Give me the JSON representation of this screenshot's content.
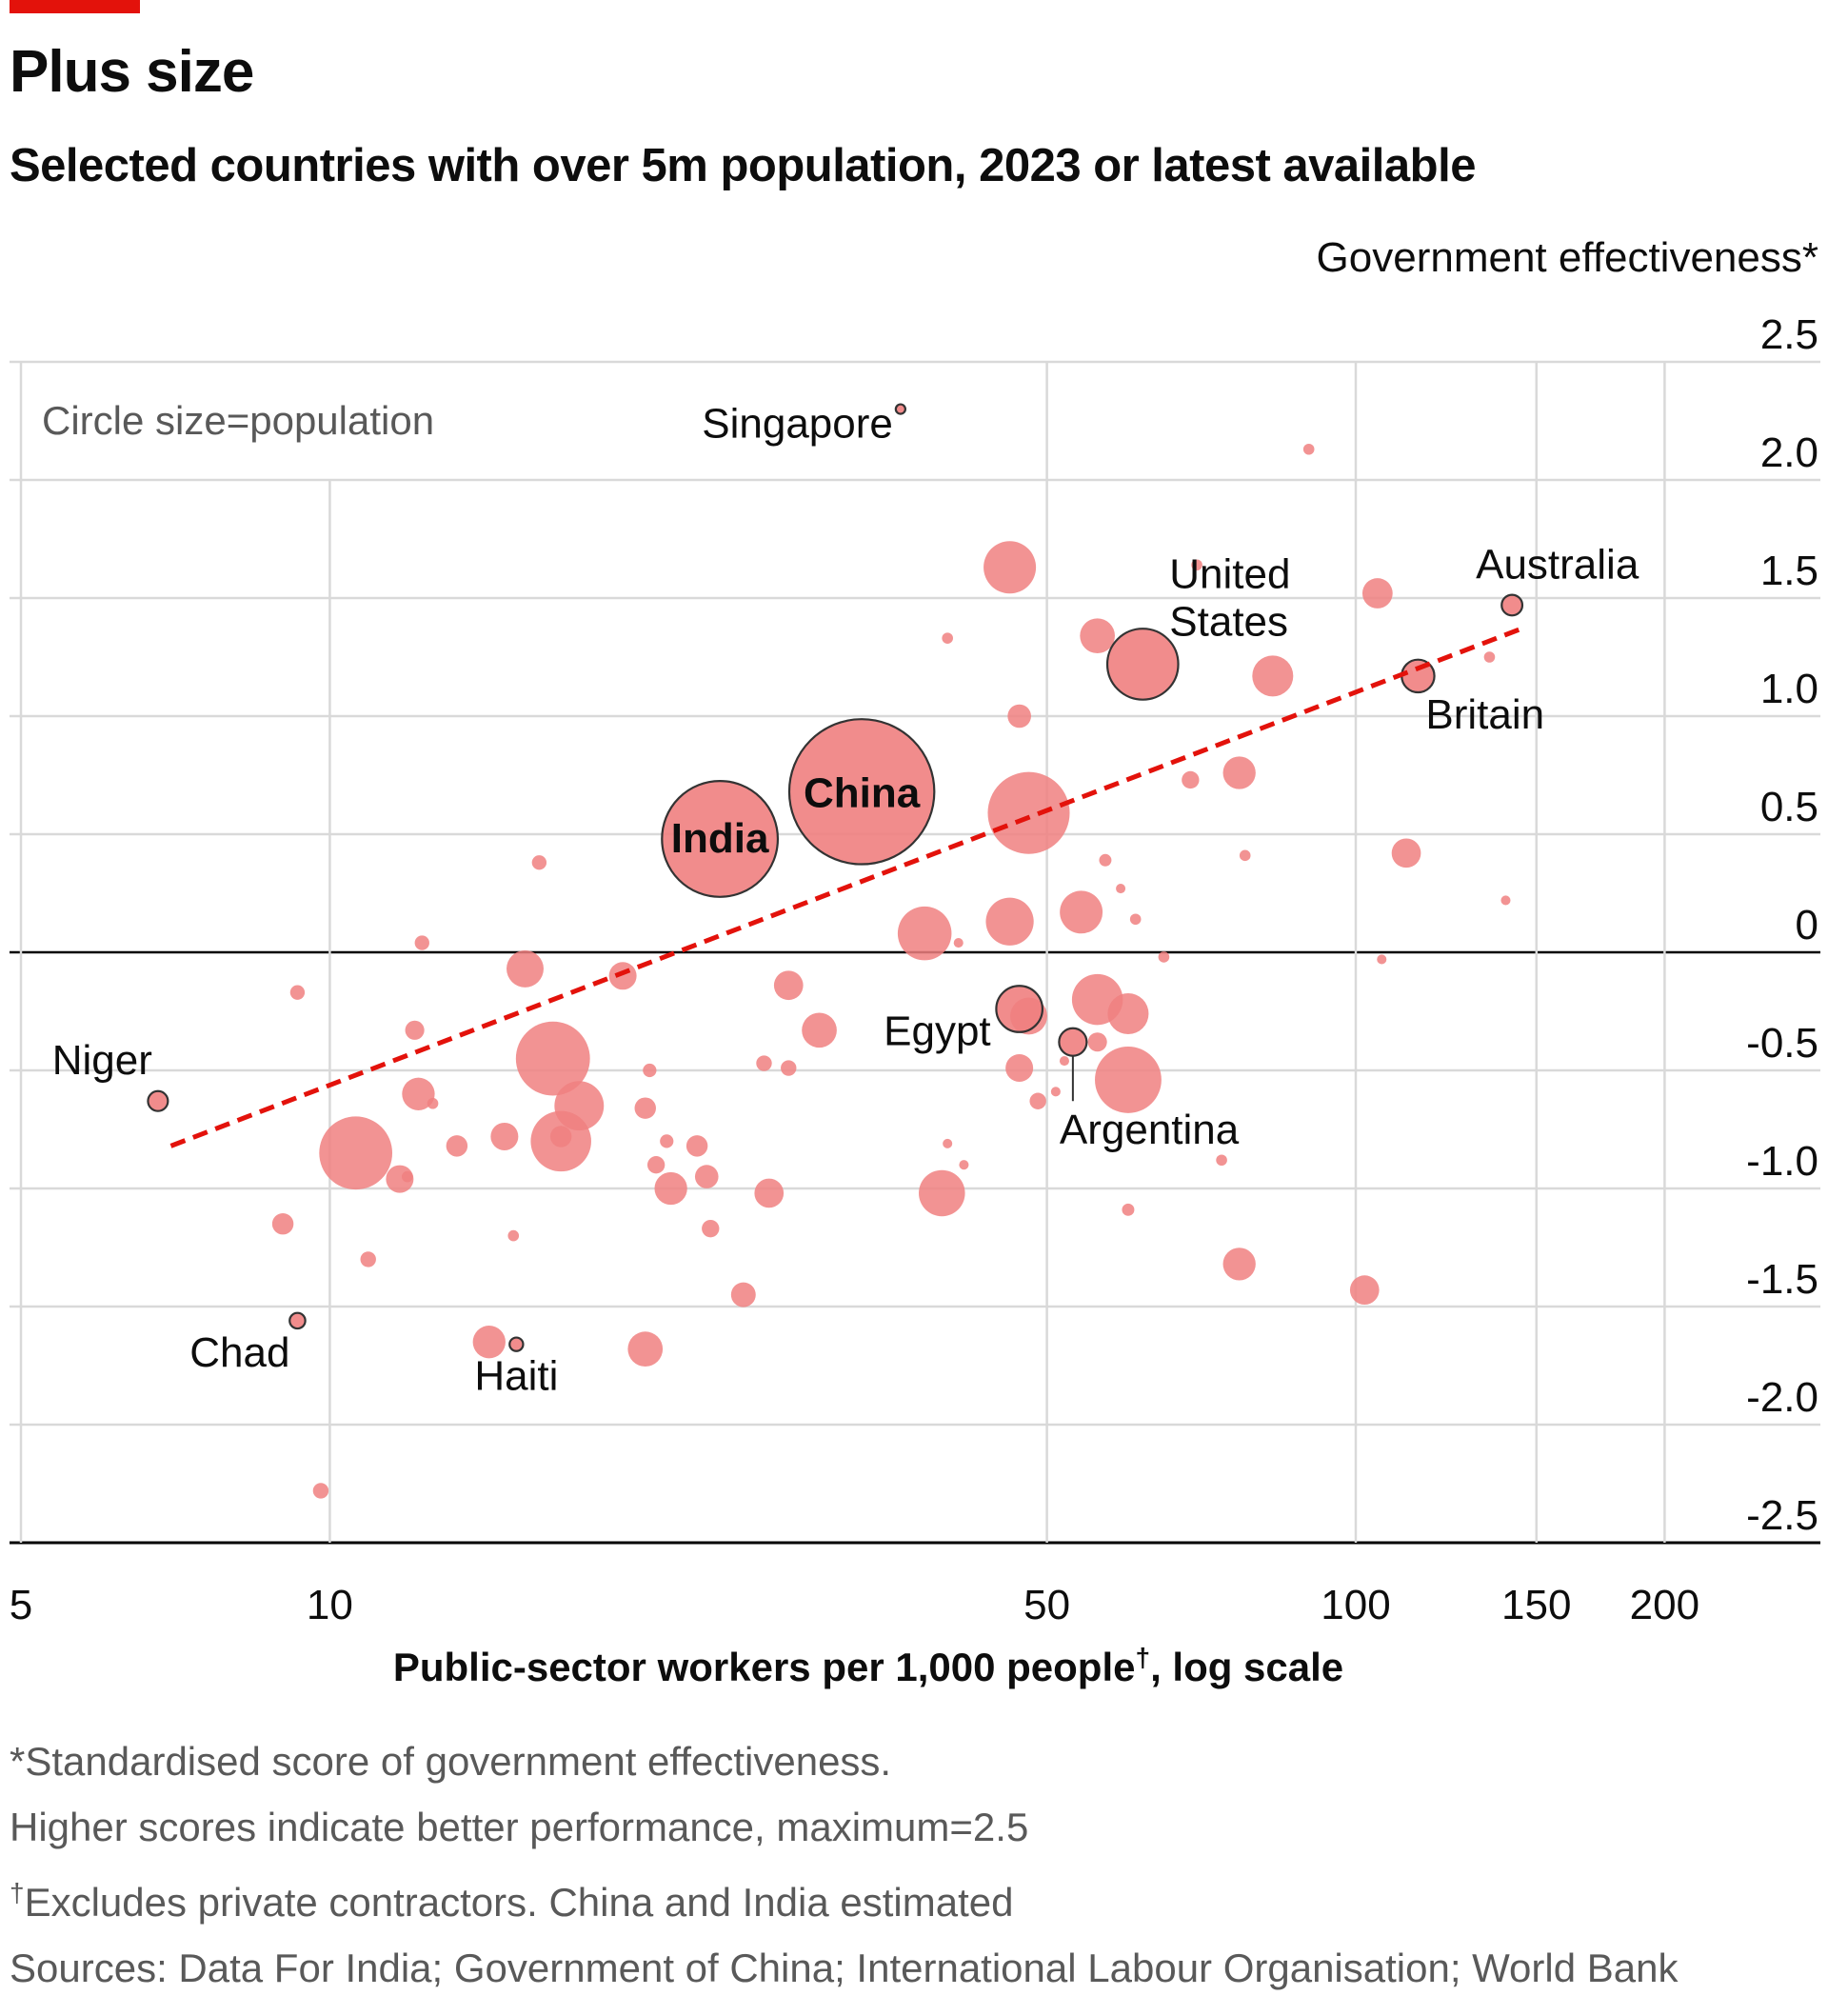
{
  "header": {
    "accent_color": "#e3120b",
    "title": "Plus size",
    "subtitle": "Selected countries with over 5m population, 2023 or latest available"
  },
  "chart_data": {
    "type": "scatter",
    "xlabel": "Public-sector workers per 1,000 people",
    "xlabel_mark": "†",
    "xlabel_suffix": ", log scale",
    "ylabel": "Government effectiveness*",
    "size_note": "Circle size=population",
    "x_scale": "log",
    "xlim": [
      5,
      250
    ],
    "ylim": [
      -2.5,
      2.5
    ],
    "x_ticks": [
      5,
      10,
      50,
      100,
      150,
      200
    ],
    "y_ticks": [
      2.5,
      2.0,
      1.5,
      1.0,
      0.5,
      0,
      -0.5,
      -1.0,
      -1.5,
      -2.0,
      -2.5
    ],
    "y_tick_labels": [
      "2.5",
      "2.0",
      "1.5",
      "1.0",
      "0.5",
      "0",
      "-0.5",
      "-1.0",
      "-1.5",
      "-2.0",
      "-2.5"
    ],
    "grid": true,
    "colors": {
      "point_fill": "#f08080",
      "point_stroke": "#333333",
      "trend": "#e3120b",
      "grid": "#d9d9d9",
      "axis": "#000000"
    },
    "trendline": {
      "x": [
        7,
        145
      ],
      "y": [
        -0.82,
        1.37
      ],
      "style": "dashed"
    },
    "labeled_points": [
      {
        "name": "Singapore",
        "x": 36,
        "y": 2.3,
        "size": 3
      },
      {
        "name": "United States",
        "x": 62,
        "y": 1.22,
        "size": 165,
        "label_lines": [
          "United",
          "States"
        ]
      },
      {
        "name": "Australia",
        "x": 142,
        "y": 1.47,
        "size": 14
      },
      {
        "name": "Britain",
        "x": 115,
        "y": 1.17,
        "size": 35
      },
      {
        "name": "China",
        "x": 33,
        "y": 0.68,
        "size": 690
      },
      {
        "name": "India",
        "x": 24,
        "y": 0.48,
        "size": 440
      },
      {
        "name": "Egypt",
        "x": 47,
        "y": -0.24,
        "size": 70
      },
      {
        "name": "Argentina",
        "x": 53,
        "y": -0.38,
        "size": 25
      },
      {
        "name": "Niger",
        "x": 6.8,
        "y": -0.63,
        "size": 13
      },
      {
        "name": "Chad",
        "x": 9.3,
        "y": -1.56,
        "size": 8
      },
      {
        "name": "Haiti",
        "x": 15.2,
        "y": -1.66,
        "size": 6
      }
    ],
    "other_points": [
      {
        "x": 90,
        "y": 2.13,
        "size": 4
      },
      {
        "x": 46,
        "y": 1.63,
        "size": 90
      },
      {
        "x": 40,
        "y": 1.33,
        "size": 4
      },
      {
        "x": 56,
        "y": 1.34,
        "size": 40
      },
      {
        "x": 70,
        "y": 1.64,
        "size": 4
      },
      {
        "x": 83,
        "y": 1.17,
        "size": 55
      },
      {
        "x": 105,
        "y": 1.52,
        "size": 30
      },
      {
        "x": 135,
        "y": 1.25,
        "size": 4
      },
      {
        "x": 47,
        "y": 1.0,
        "size": 18
      },
      {
        "x": 48,
        "y": 0.59,
        "size": 220
      },
      {
        "x": 69,
        "y": 0.73,
        "size": 10
      },
      {
        "x": 77,
        "y": 0.76,
        "size": 35
      },
      {
        "x": 112,
        "y": 0.42,
        "size": 28
      },
      {
        "x": 57,
        "y": 0.39,
        "size": 5
      },
      {
        "x": 78,
        "y": 0.41,
        "size": 4
      },
      {
        "x": 16,
        "y": 0.38,
        "size": 7
      },
      {
        "x": 41,
        "y": 0.04,
        "size": 3
      },
      {
        "x": 38,
        "y": 0.08,
        "size": 95
      },
      {
        "x": 46,
        "y": 0.13,
        "size": 75
      },
      {
        "x": 54,
        "y": 0.17,
        "size": 60
      },
      {
        "x": 59,
        "y": 0.27,
        "size": 3
      },
      {
        "x": 61,
        "y": 0.14,
        "size": 4
      },
      {
        "x": 140,
        "y": 0.22,
        "size": 3
      },
      {
        "x": 12.3,
        "y": 0.04,
        "size": 7
      },
      {
        "x": 15.5,
        "y": -0.07,
        "size": 45
      },
      {
        "x": 19.3,
        "y": -0.1,
        "size": 25
      },
      {
        "x": 28,
        "y": -0.14,
        "size": 28
      },
      {
        "x": 65,
        "y": -0.02,
        "size": 4
      },
      {
        "x": 106,
        "y": -0.03,
        "size": 3
      },
      {
        "x": 9.3,
        "y": -0.17,
        "size": 7
      },
      {
        "x": 48,
        "y": -0.27,
        "size": 45
      },
      {
        "x": 56,
        "y": -0.2,
        "size": 85
      },
      {
        "x": 60,
        "y": -0.26,
        "size": 55
      },
      {
        "x": 12.1,
        "y": -0.33,
        "size": 12
      },
      {
        "x": 30,
        "y": -0.33,
        "size": 40
      },
      {
        "x": 16.5,
        "y": -0.45,
        "size": 180
      },
      {
        "x": 20.5,
        "y": -0.5,
        "size": 6
      },
      {
        "x": 26.5,
        "y": -0.47,
        "size": 8
      },
      {
        "x": 28,
        "y": -0.49,
        "size": 8
      },
      {
        "x": 47,
        "y": -0.49,
        "size": 25
      },
      {
        "x": 52,
        "y": -0.46,
        "size": 3
      },
      {
        "x": 56,
        "y": -0.38,
        "size": 12
      },
      {
        "x": 60,
        "y": -0.54,
        "size": 145
      },
      {
        "x": 12.2,
        "y": -0.6,
        "size": 35
      },
      {
        "x": 12.6,
        "y": -0.64,
        "size": 4
      },
      {
        "x": 17.5,
        "y": -0.65,
        "size": 80
      },
      {
        "x": 20.3,
        "y": -0.66,
        "size": 15
      },
      {
        "x": 49,
        "y": -0.63,
        "size": 9
      },
      {
        "x": 51,
        "y": -0.59,
        "size": 3
      },
      {
        "x": 16.8,
        "y": -0.8,
        "size": 120
      },
      {
        "x": 16.8,
        "y": -0.78,
        "size": 15
      },
      {
        "x": 14.8,
        "y": -0.78,
        "size": 25
      },
      {
        "x": 10.6,
        "y": -0.85,
        "size": 175
      },
      {
        "x": 13.3,
        "y": -0.82,
        "size": 15
      },
      {
        "x": 21.3,
        "y": -0.8,
        "size": 6
      },
      {
        "x": 22.8,
        "y": -0.82,
        "size": 15
      },
      {
        "x": 20.8,
        "y": -0.9,
        "size": 10
      },
      {
        "x": 23.3,
        "y": -0.95,
        "size": 18
      },
      {
        "x": 21.5,
        "y": -1.0,
        "size": 35
      },
      {
        "x": 26.8,
        "y": -1.02,
        "size": 28
      },
      {
        "x": 40,
        "y": -0.81,
        "size": 3
      },
      {
        "x": 41.5,
        "y": -0.9,
        "size": 3
      },
      {
        "x": 39.5,
        "y": -1.02,
        "size": 70
      },
      {
        "x": 11.7,
        "y": -0.96,
        "size": 25
      },
      {
        "x": 11.9,
        "y": -0.95,
        "size": 4
      },
      {
        "x": 9,
        "y": -1.15,
        "size": 15
      },
      {
        "x": 10.9,
        "y": -1.3,
        "size": 8
      },
      {
        "x": 15.1,
        "y": -1.2,
        "size": 4
      },
      {
        "x": 23.5,
        "y": -1.17,
        "size": 10
      },
      {
        "x": 25.3,
        "y": -1.45,
        "size": 20
      },
      {
        "x": 14.3,
        "y": -1.65,
        "size": 35
      },
      {
        "x": 20.3,
        "y": -1.68,
        "size": 40
      },
      {
        "x": 74,
        "y": -0.88,
        "size": 4
      },
      {
        "x": 60,
        "y": -1.09,
        "size": 5
      },
      {
        "x": 77,
        "y": -1.32,
        "size": 35
      },
      {
        "x": 102,
        "y": -1.43,
        "size": 28
      },
      {
        "x": 9.8,
        "y": -2.28,
        "size": 8
      }
    ]
  },
  "notes": {
    "line1": "*Standardised score of government effectiveness.",
    "line2": "Higher scores indicate better performance, maximum=2.5",
    "line3_mark": "†",
    "line3": "Excludes private contractors. China and India estimated",
    "sources": "Sources: Data For India; Government of China; International Labour Organisation; World Bank"
  }
}
